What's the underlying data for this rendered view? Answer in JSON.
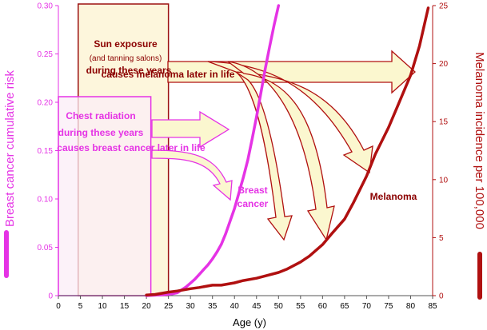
{
  "chart_data": {
    "type": "line",
    "xlabel": "Age (y)",
    "ylabel_left": "Breast cancer cumulative risk",
    "ylabel_right": "Melanoma incidence per 100,000",
    "xlim": [
      0,
      85
    ],
    "ylim_left": [
      0,
      0.3
    ],
    "ylim_right": [
      0,
      25
    ],
    "x_ticks": [
      0,
      5,
      10,
      15,
      20,
      25,
      30,
      35,
      40,
      45,
      50,
      55,
      60,
      65,
      70,
      75,
      80,
      85
    ],
    "y_left_ticks": [
      "0",
      "0.05",
      "0.10",
      "0.15",
      "0.20",
      "0.25",
      "0.30"
    ],
    "y_right_ticks": [
      "0",
      "5",
      "10",
      "15",
      "20",
      "25"
    ],
    "colors": {
      "breast": "#e533e5",
      "melanoma": "#b01010",
      "sun_box_fill": "#fdf6dc",
      "arrow_fill": "#fbf7cf"
    },
    "series": [
      {
        "name": "Breast cancer",
        "axis": "left",
        "x": [
          20,
          22,
          24,
          26,
          27,
          28,
          29,
          30,
          31,
          32,
          33,
          34,
          35,
          36,
          37,
          38,
          39,
          40,
          41,
          42,
          43,
          44,
          45,
          46,
          47,
          48,
          49,
          50
        ],
        "values": [
          0.0,
          0.0005,
          0.001,
          0.002,
          0.003,
          0.006,
          0.009,
          0.013,
          0.017,
          0.022,
          0.027,
          0.032,
          0.038,
          0.045,
          0.053,
          0.064,
          0.077,
          0.09,
          0.106,
          0.122,
          0.14,
          0.162,
          0.185,
          0.21,
          0.235,
          0.258,
          0.28,
          0.3
        ]
      },
      {
        "name": "Melanoma",
        "axis": "right",
        "x": [
          20,
          22,
          25,
          27,
          30,
          32,
          35,
          37,
          40,
          42,
          45,
          47,
          50,
          52,
          55,
          57,
          60,
          62,
          65,
          67,
          70,
          72,
          75,
          77,
          80,
          82,
          84
        ],
        "values": [
          0.05,
          0.1,
          0.3,
          0.4,
          0.6,
          0.7,
          0.9,
          0.9,
          1.1,
          1.3,
          1.5,
          1.7,
          2.0,
          2.3,
          2.9,
          3.4,
          4.4,
          5.3,
          6.6,
          8.0,
          10.3,
          12.2,
          14.5,
          16.3,
          19.0,
          21.5,
          24.8
        ]
      }
    ],
    "annotations": {
      "sun_line1": "Sun exposure",
      "sun_line2": "(and tanning salons)",
      "sun_line3": "during these years",
      "sun_line4": "causes melanoma later in life",
      "chest_line1": "Chest radiation",
      "chest_line2": "during these years",
      "chest_line3": "causes breast cancer later in life",
      "breast_label_1": "Breast",
      "breast_label_2": "cancer",
      "melanoma_label": "Melanoma"
    }
  }
}
